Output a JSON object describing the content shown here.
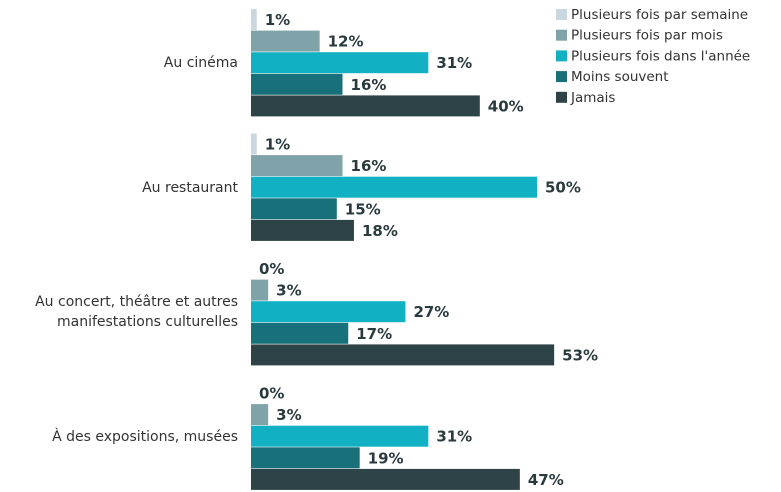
{
  "chart_data": {
    "type": "bar",
    "orientation": "horizontal",
    "categories": [
      "Au cinéma",
      "Au restaurant",
      "Au concert, théâtre et autres\nmanifestations culturelles",
      "À des expositions, musées"
    ],
    "series": [
      {
        "name": "Plusieurs fois par semaine",
        "color": "#c9d7e0",
        "values": [
          1,
          1,
          0,
          0
        ],
        "value_labels": [
          "1%",
          "1%",
          "0%",
          "0%"
        ]
      },
      {
        "name": "Plusieurs fois par mois",
        "color": "#7fa3a8",
        "values": [
          12,
          16,
          3,
          3
        ],
        "value_labels": [
          "12%",
          "16%",
          "3%",
          "3%"
        ]
      },
      {
        "name": "Plusieurs fois dans l'année",
        "color": "#12b0c3",
        "values": [
          31,
          50,
          27,
          31
        ],
        "value_labels": [
          "31%",
          "50%",
          "27%",
          "31%"
        ]
      },
      {
        "name": "Moins souvent",
        "color": "#17707a",
        "values": [
          16,
          15,
          17,
          19
        ],
        "value_labels": [
          "16%",
          "15%",
          "17%",
          "19%"
        ]
      },
      {
        "name": "Jamais",
        "color": "#2e4347",
        "values": [
          40,
          18,
          53,
          47
        ],
        "value_labels": [
          "40%",
          "18%",
          "53%",
          "47%"
        ]
      }
    ],
    "legend": "top-right"
  }
}
